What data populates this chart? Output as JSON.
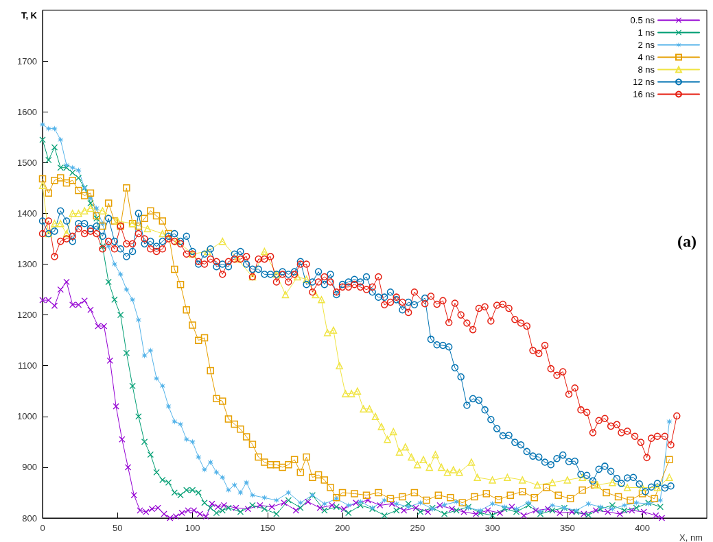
{
  "chart_data": {
    "type": "line",
    "xlabel": "X, nm",
    "ylabel": "T, K",
    "xlim": [
      0,
      443
    ],
    "xticks": [
      0,
      50,
      100,
      150,
      200,
      250,
      300,
      350,
      400
    ],
    "ylim": [
      800,
      1800
    ],
    "yticks": [
      800,
      900,
      1000,
      1100,
      1200,
      1300,
      1400,
      1500,
      1600,
      1700
    ],
    "grid": false,
    "legend": "top right",
    "line_style": "solid",
    "annotations": [
      "(a)"
    ],
    "series": [
      {
        "name": "0.5 ns",
        "color": "#9400d3",
        "marker": "cross",
        "x": [
          0,
          4,
          8,
          12,
          16,
          20,
          24,
          28,
          32,
          37,
          41,
          45,
          49,
          53,
          57,
          61,
          65,
          69,
          73,
          77,
          81,
          85,
          89,
          93,
          97,
          101,
          105,
          109,
          113,
          117,
          121,
          129,
          137,
          145,
          153,
          161,
          169,
          177,
          185,
          193,
          201,
          209,
          217,
          225,
          233,
          241,
          249,
          257,
          265,
          273,
          281,
          289,
          297,
          305,
          313,
          321,
          329,
          337,
          345,
          353,
          361,
          369,
          377,
          385,
          393,
          401,
          409,
          413
        ],
        "values": [
          1229,
          1229,
          1218,
          1250,
          1265,
          1220,
          1220,
          1228,
          1210,
          1178,
          1178,
          1110,
          1020,
          955,
          900,
          845,
          815,
          812,
          818,
          820,
          808,
          800,
          803,
          810,
          815,
          815,
          808,
          803,
          828,
          822,
          825,
          820,
          818,
          825,
          822,
          830,
          815,
          832,
          820,
          825,
          818,
          830,
          835,
          825,
          828,
          815,
          820,
          812,
          825,
          818,
          812,
          808,
          815,
          810,
          822,
          805,
          815,
          818,
          810,
          812,
          808,
          815,
          812,
          808,
          815,
          812,
          805,
          800
        ]
      },
      {
        "name": "1 ns",
        "color": "#009e73",
        "marker": "cross",
        "x": [
          0,
          4,
          8,
          12,
          16,
          20,
          24,
          28,
          32,
          36,
          40,
          44,
          48,
          52,
          56,
          60,
          64,
          68,
          72,
          76,
          80,
          84,
          88,
          92,
          96,
          100,
          104,
          108,
          112,
          116,
          120,
          124,
          132,
          140,
          148,
          156,
          164,
          172,
          180,
          188,
          196,
          204,
          212,
          220,
          228,
          236,
          244,
          252,
          260,
          268,
          276,
          284,
          292,
          300,
          308,
          316,
          324,
          332,
          340,
          348,
          356,
          364,
          372,
          380,
          388,
          396,
          404,
          412
        ],
        "values": [
          1545,
          1505,
          1530,
          1490,
          1490,
          1480,
          1470,
          1450,
          1420,
          1390,
          1335,
          1265,
          1230,
          1200,
          1125,
          1060,
          1000,
          950,
          925,
          890,
          875,
          870,
          850,
          845,
          855,
          855,
          850,
          830,
          820,
          810,
          815,
          820,
          812,
          825,
          818,
          808,
          835,
          820,
          845,
          815,
          822,
          810,
          825,
          818,
          805,
          815,
          828,
          812,
          820,
          808,
          815,
          822,
          810,
          805,
          818,
          812,
          825,
          808,
          815,
          820,
          812,
          806,
          818,
          825,
          815,
          820,
          830,
          822
        ]
      },
      {
        "name": "2 ns",
        "color": "#56b4e9",
        "marker": "star",
        "x": [
          0,
          4,
          8,
          12,
          16,
          20,
          24,
          28,
          32,
          36,
          40,
          44,
          48,
          52,
          56,
          60,
          64,
          68,
          72,
          76,
          80,
          84,
          88,
          92,
          96,
          100,
          104,
          108,
          112,
          116,
          120,
          124,
          128,
          132,
          136,
          140,
          148,
          156,
          164,
          172,
          180,
          188,
          196,
          204,
          212,
          220,
          228,
          236,
          244,
          252,
          260,
          268,
          276,
          284,
          292,
          300,
          308,
          316,
          324,
          332,
          340,
          348,
          356,
          364,
          372,
          380,
          388,
          396,
          404,
          412,
          418
        ],
        "values": [
          1575,
          1567,
          1567,
          1545,
          1495,
          1490,
          1485,
          1450,
          1430,
          1410,
          1380,
          1335,
          1300,
          1280,
          1250,
          1230,
          1190,
          1120,
          1130,
          1075,
          1060,
          1020,
          990,
          985,
          955,
          950,
          920,
          895,
          910,
          890,
          880,
          855,
          865,
          850,
          870,
          845,
          840,
          835,
          850,
          830,
          845,
          828,
          838,
          825,
          832,
          820,
          835,
          828,
          822,
          830,
          818,
          826,
          832,
          820,
          815,
          828,
          822,
          818,
          830,
          812,
          825,
          820,
          815,
          828,
          822,
          818,
          825,
          830,
          828,
          835,
          990
        ]
      },
      {
        "name": "4 ns",
        "color": "#e69f00",
        "marker": "square",
        "x": [
          0,
          4,
          8,
          12,
          16,
          20,
          24,
          28,
          32,
          36,
          40,
          44,
          48,
          52,
          56,
          60,
          64,
          68,
          72,
          76,
          80,
          84,
          88,
          92,
          96,
          100,
          104,
          108,
          112,
          116,
          120,
          124,
          128,
          132,
          136,
          140,
          144,
          148,
          152,
          156,
          160,
          164,
          168,
          172,
          176,
          180,
          184,
          188,
          192,
          196,
          200,
          208,
          216,
          224,
          232,
          240,
          248,
          256,
          264,
          272,
          280,
          288,
          296,
          304,
          312,
          320,
          328,
          336,
          344,
          352,
          360,
          368,
          376,
          384,
          392,
          400,
          408,
          418
        ],
        "values": [
          1468,
          1440,
          1465,
          1470,
          1460,
          1465,
          1445,
          1435,
          1440,
          1395,
          1375,
          1420,
          1385,
          1375,
          1450,
          1380,
          1375,
          1390,
          1405,
          1395,
          1385,
          1360,
          1290,
          1260,
          1210,
          1180,
          1150,
          1155,
          1090,
          1035,
          1030,
          995,
          985,
          975,
          960,
          945,
          920,
          910,
          905,
          905,
          900,
          905,
          915,
          890,
          920,
          880,
          885,
          875,
          860,
          840,
          850,
          848,
          845,
          850,
          838,
          842,
          850,
          835,
          845,
          840,
          830,
          842,
          848,
          836,
          845,
          852,
          840,
          860,
          845,
          838,
          855,
          865,
          850,
          842,
          835,
          848,
          838,
          915
        ]
      },
      {
        "name": "8 ns",
        "color": "#f0e442",
        "marker": "triangle",
        "x": [
          0,
          4,
          8,
          12,
          16,
          20,
          24,
          28,
          32,
          40,
          50,
          60,
          70,
          80,
          90,
          100,
          110,
          120,
          130,
          140,
          148,
          156,
          162,
          170,
          176,
          182,
          186,
          190,
          194,
          198,
          202,
          206,
          210,
          214,
          218,
          222,
          226,
          230,
          234,
          238,
          242,
          246,
          250,
          254,
          258,
          262,
          266,
          270,
          274,
          278,
          286,
          290,
          300,
          310,
          320,
          330,
          340,
          350,
          360,
          370,
          380,
          390,
          400,
          410,
          418
        ],
        "values": [
          1455,
          1360,
          1380,
          1380,
          1360,
          1400,
          1400,
          1405,
          1410,
          1405,
          1385,
          1380,
          1370,
          1360,
          1345,
          1320,
          1325,
          1345,
          1310,
          1275,
          1325,
          1280,
          1240,
          1275,
          1270,
          1240,
          1230,
          1165,
          1170,
          1100,
          1045,
          1045,
          1050,
          1015,
          1015,
          1000,
          980,
          955,
          970,
          930,
          940,
          920,
          905,
          915,
          900,
          925,
          900,
          890,
          895,
          890,
          910,
          880,
          875,
          880,
          875,
          865,
          870,
          875,
          880,
          865,
          870,
          860,
          860,
          860,
          880
        ]
      },
      {
        "name": "12 ns",
        "color": "#0072b2",
        "marker": "circle",
        "x": [
          0,
          4,
          8,
          12,
          16,
          20,
          24,
          28,
          32,
          36,
          40,
          44,
          48,
          52,
          56,
          60,
          64,
          68,
          72,
          76,
          80,
          84,
          88,
          92,
          96,
          100,
          104,
          108,
          112,
          116,
          120,
          124,
          128,
          132,
          136,
          140,
          144,
          148,
          152,
          156,
          160,
          164,
          168,
          172,
          176,
          180,
          184,
          188,
          192,
          196,
          200,
          204,
          208,
          212,
          216,
          220,
          224,
          228,
          232,
          236,
          240,
          244,
          248,
          255,
          259,
          263,
          267,
          271,
          275,
          279,
          283,
          287,
          291,
          295,
          299,
          303,
          307,
          311,
          315,
          319,
          323,
          327,
          331,
          335,
          339,
          343,
          347,
          351,
          355,
          359,
          363,
          367,
          371,
          375,
          379,
          383,
          386,
          390,
          394,
          398,
          402,
          406,
          410,
          415,
          419
        ],
        "values": [
          1385,
          1360,
          1365,
          1405,
          1385,
          1345,
          1380,
          1380,
          1370,
          1375,
          1355,
          1390,
          1345,
          1330,
          1315,
          1325,
          1400,
          1340,
          1345,
          1335,
          1345,
          1355,
          1360,
          1345,
          1355,
          1325,
          1300,
          1320,
          1330,
          1295,
          1300,
          1295,
          1320,
          1325,
          1300,
          1290,
          1290,
          1280,
          1280,
          1280,
          1285,
          1280,
          1285,
          1305,
          1260,
          1265,
          1285,
          1260,
          1280,
          1240,
          1260,
          1265,
          1270,
          1265,
          1275,
          1245,
          1235,
          1235,
          1245,
          1230,
          1210,
          1225,
          1220,
          1233,
          1152,
          1141,
          1140,
          1137,
          1096,
          1078,
          1022,
          1035,
          1032,
          1013,
          994,
          976,
          962,
          963,
          949,
          944,
          931,
          922,
          920,
          910,
          905,
          917,
          924,
          911,
          912,
          886,
          884,
          873,
          896,
          902,
          892,
          878,
          868,
          879,
          880,
          867,
          852,
          861,
          868,
          859,
          863
        ]
      },
      {
        "name": "16 ns",
        "color": "#e51e10",
        "marker": "circle",
        "x": [
          0,
          4,
          8,
          12,
          16,
          20,
          24,
          28,
          32,
          36,
          40,
          44,
          48,
          52,
          56,
          60,
          64,
          68,
          72,
          76,
          80,
          84,
          88,
          92,
          96,
          100,
          104,
          108,
          112,
          116,
          120,
          124,
          128,
          132,
          136,
          140,
          144,
          148,
          152,
          156,
          160,
          164,
          168,
          172,
          176,
          180,
          184,
          188,
          192,
          196,
          200,
          204,
          208,
          212,
          216,
          220,
          224,
          228,
          232,
          236,
          240,
          244,
          248,
          255,
          259,
          263,
          267,
          271,
          275,
          279,
          283,
          287,
          291,
          295,
          299,
          303,
          307,
          311,
          315,
          319,
          323,
          327,
          331,
          335,
          339,
          343,
          347,
          351,
          355,
          359,
          363,
          367,
          371,
          375,
          379,
          383,
          386,
          390,
          395,
          399,
          403,
          406,
          410,
          415,
          419,
          423
        ],
        "values": [
          1360,
          1385,
          1315,
          1345,
          1350,
          1355,
          1370,
          1360,
          1365,
          1360,
          1330,
          1345,
          1330,
          1375,
          1340,
          1340,
          1360,
          1350,
          1330,
          1325,
          1330,
          1350,
          1345,
          1340,
          1320,
          1320,
          1305,
          1300,
          1310,
          1305,
          1280,
          1305,
          1310,
          1310,
          1315,
          1275,
          1310,
          1310,
          1315,
          1265,
          1280,
          1265,
          1280,
          1300,
          1300,
          1245,
          1265,
          1275,
          1265,
          1245,
          1255,
          1255,
          1260,
          1255,
          1250,
          1255,
          1275,
          1220,
          1225,
          1235,
          1225,
          1205,
          1245,
          1222,
          1237,
          1221,
          1228,
          1185,
          1223,
          1200,
          1184,
          1171,
          1213,
          1216,
          1188,
          1219,
          1221,
          1213,
          1191,
          1184,
          1178,
          1130,
          1124,
          1140,
          1094,
          1081,
          1088,
          1044,
          1056,
          1013,
          1008,
          968,
          992,
          996,
          981,
          984,
          968,
          971,
          961,
          949,
          919,
          957,
          961,
          961,
          944,
          1001
        ]
      }
    ]
  }
}
